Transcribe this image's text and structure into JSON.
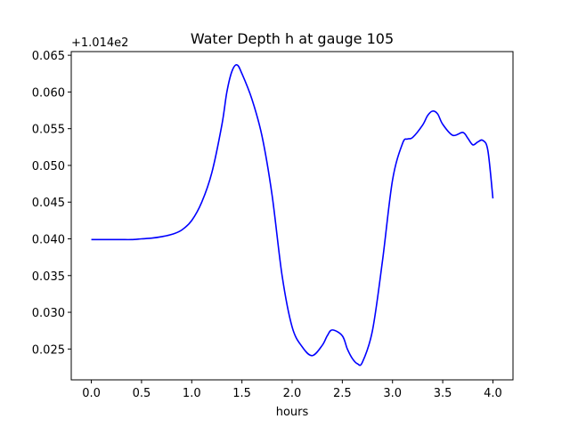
{
  "chart_data": {
    "type": "line",
    "title": "Water Depth h at gauge 105",
    "xlabel": "hours",
    "ylabel": "",
    "offset_text": "+1.014e2",
    "xlim": [
      -0.2,
      4.2
    ],
    "ylim": [
      0.0208,
      0.0655
    ],
    "xticks": [
      0.0,
      0.5,
      1.0,
      1.5,
      2.0,
      2.5,
      3.0,
      3.5,
      4.0
    ],
    "xtick_labels": [
      "0.0",
      "0.5",
      "1.0",
      "1.5",
      "2.0",
      "2.5",
      "3.0",
      "3.5",
      "4.0"
    ],
    "yticks": [
      0.025,
      0.03,
      0.035,
      0.04,
      0.045,
      0.05,
      0.055,
      0.06,
      0.065
    ],
    "ytick_labels": [
      "0.025",
      "0.030",
      "0.035",
      "0.040",
      "0.045",
      "0.050",
      "0.055",
      "0.060",
      "0.065"
    ],
    "grid": false,
    "series": [
      {
        "color": "#0000ff",
        "x": [
          0.0,
          0.1,
          0.2,
          0.3,
          0.4,
          0.5,
          0.6,
          0.7,
          0.8,
          0.9,
          1.0,
          1.1,
          1.2,
          1.3,
          1.35,
          1.4,
          1.45,
          1.5,
          1.6,
          1.7,
          1.8,
          1.9,
          2.0,
          2.1,
          2.2,
          2.3,
          2.35,
          2.4,
          2.5,
          2.55,
          2.6,
          2.65,
          2.7,
          2.8,
          2.9,
          3.0,
          3.1,
          3.15,
          3.2,
          3.3,
          3.35,
          3.4,
          3.45,
          3.5,
          3.6,
          3.7,
          3.75,
          3.8,
          3.85,
          3.9,
          3.95,
          4.0
        ],
        "values": [
          0.0399,
          0.0399,
          0.0399,
          0.0399,
          0.0399,
          0.04,
          0.0401,
          0.0403,
          0.0406,
          0.0412,
          0.0425,
          0.045,
          0.049,
          0.0555,
          0.06,
          0.0628,
          0.0637,
          0.0625,
          0.059,
          0.054,
          0.046,
          0.035,
          0.028,
          0.0253,
          0.0241,
          0.0255,
          0.0268,
          0.0276,
          0.0268,
          0.025,
          0.0237,
          0.023,
          0.0232,
          0.0275,
          0.037,
          0.048,
          0.053,
          0.0536,
          0.0538,
          0.0555,
          0.0568,
          0.0574,
          0.057,
          0.0556,
          0.0541,
          0.0545,
          0.0537,
          0.0528,
          0.0532,
          0.0534,
          0.052,
          0.0455
        ]
      }
    ]
  }
}
